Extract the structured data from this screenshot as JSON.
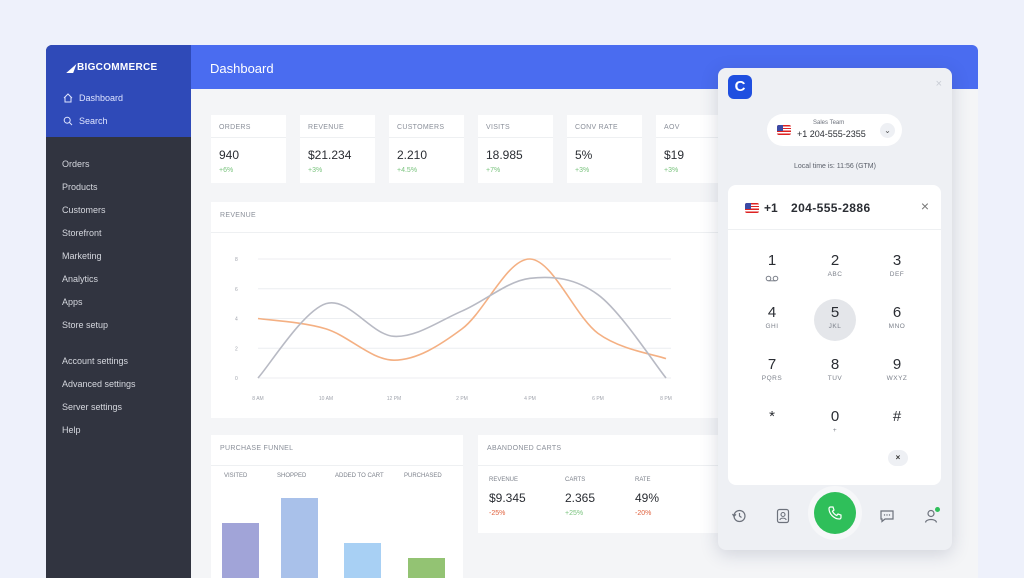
{
  "sidebar": {
    "brand": "BIGCOMMERCE",
    "top_items": [
      {
        "label": "Dashboard",
        "icon": "home-icon"
      },
      {
        "label": "Search",
        "icon": "search-icon"
      }
    ],
    "items": [
      "Orders",
      "Products",
      "Customers",
      "Storefront",
      "Marketing",
      "Analytics",
      "Apps",
      "Store setup"
    ],
    "settings": [
      "Account settings",
      "Advanced settings",
      "Server settings",
      "Help"
    ]
  },
  "header": {
    "title": "Dashboard"
  },
  "stats": [
    {
      "label": "ORDERS",
      "value": "940",
      "delta": "+6%"
    },
    {
      "label": "REVENUE",
      "value": "$21.234",
      "delta": "+3%"
    },
    {
      "label": "CUSTOMERS",
      "value": "2.210",
      "delta": "+4.5%"
    },
    {
      "label": "VISITS",
      "value": "18.985",
      "delta": "+7%"
    },
    {
      "label": "CONV RATE",
      "value": "5%",
      "delta": "+3%"
    },
    {
      "label": "AOV",
      "value": "$19",
      "delta": "+3%"
    }
  ],
  "revenue": {
    "title": "REVENUE"
  },
  "chart_data": {
    "type": "line",
    "title": "REVENUE",
    "x": [
      "8 AM",
      "10 AM",
      "12 PM",
      "2 PM",
      "4 PM",
      "6 PM",
      "8 PM"
    ],
    "ylim": [
      0,
      8
    ],
    "yticks": [
      "0",
      "2",
      "4",
      "6",
      "8"
    ],
    "grid": true,
    "series": [
      {
        "color": "#f4b083",
        "values": [
          4.0,
          3.3,
          1.2,
          3.3,
          8.0,
          3.0,
          1.3
        ]
      },
      {
        "color": "#b8bac4",
        "values": [
          0.0,
          5.0,
          2.8,
          4.5,
          6.7,
          5.6,
          0.0
        ]
      }
    ]
  },
  "funnel": {
    "title": "PURCHASE FUNNEL",
    "stages": [
      {
        "label": "VISITED",
        "value": 0.55,
        "color": "#a1a4d8"
      },
      {
        "label": "SHOPPED",
        "value": 0.8,
        "color": "#a9c1ea"
      },
      {
        "label": "ADDED TO CART",
        "value": 0.35,
        "color": "#a8d0f4"
      },
      {
        "label": "PURCHASED",
        "value": 0.2,
        "color": "#93c373"
      }
    ]
  },
  "carts": {
    "title": "ABANDONED CARTS",
    "metrics": [
      {
        "label": "REVENUE",
        "value": "$9.345",
        "delta": "-25%",
        "delta_color": "#e0623e"
      },
      {
        "label": "CARTS",
        "value": "2.365",
        "delta": "+25%",
        "delta_color": "#79c37d"
      },
      {
        "label": "RATE",
        "value": "49%",
        "delta": "-20%",
        "delta_color": "#e0623e"
      }
    ]
  },
  "dialer": {
    "logo": "C",
    "close": "×",
    "caller": {
      "team": "Sales Team",
      "number": "+1 204-555-2355"
    },
    "local_time": "Local time is: 11:56 (GTM)",
    "dialed": {
      "code": "+1",
      "number": "204-555-2886",
      "clear": "×"
    },
    "keys": [
      {
        "digit": "1",
        "letters": "",
        "icon": "voicemail-icon"
      },
      {
        "digit": "2",
        "letters": "ABC"
      },
      {
        "digit": "3",
        "letters": "DEF"
      },
      {
        "digit": "4",
        "letters": "GHI"
      },
      {
        "digit": "5",
        "letters": "JKL",
        "active": true
      },
      {
        "digit": "6",
        "letters": "MNO"
      },
      {
        "digit": "7",
        "letters": "PQRS"
      },
      {
        "digit": "8",
        "letters": "TUV"
      },
      {
        "digit": "9",
        "letters": "WXYZ"
      },
      {
        "digit": "*",
        "letters": ""
      },
      {
        "digit": "0",
        "letters": "+"
      },
      {
        "digit": "#",
        "letters": ""
      }
    ],
    "backspace": "×",
    "colors": {
      "brand": "#1f4fe0",
      "call": "#2fbf5a"
    }
  }
}
